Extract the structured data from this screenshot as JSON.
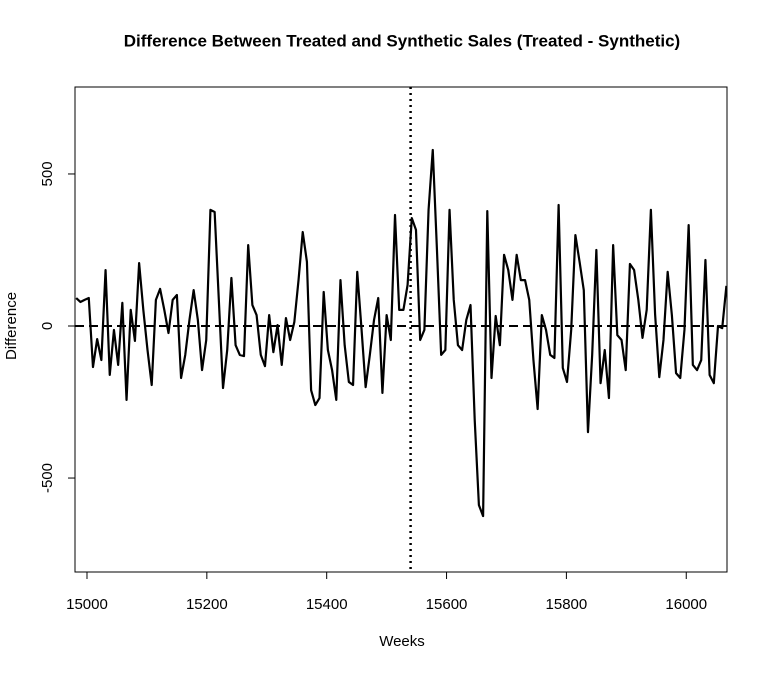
{
  "chart_data": {
    "type": "line",
    "title": "Difference Between Treated and Synthetic Sales (Treated - Synthetic)",
    "xlabel": "Weeks",
    "ylabel": "Difference",
    "color": "#000000",
    "x": [
      14982,
      14989,
      14996,
      15003,
      15010,
      15017,
      15024,
      15031,
      15038,
      15045,
      15052,
      15059,
      15066,
      15073,
      15080,
      15087,
      15094,
      15101,
      15108,
      15115,
      15122,
      15129,
      15136,
      15143,
      15150,
      15157,
      15164,
      15171,
      15178,
      15185,
      15192,
      15199,
      15206,
      15213,
      15220,
      15227,
      15234,
      15241,
      15248,
      15255,
      15262,
      15269,
      15276,
      15283,
      15290,
      15297,
      15304,
      15311,
      15318,
      15325,
      15332,
      15339,
      15346,
      15353,
      15360,
      15367,
      15374,
      15381,
      15388,
      15395,
      15402,
      15409,
      15416,
      15423,
      15430,
      15437,
      15444,
      15451,
      15458,
      15465,
      15472,
      15479,
      15486,
      15493,
      15500,
      15507,
      15514,
      15521,
      15528,
      15535,
      15542,
      15549,
      15556,
      15563,
      15570,
      15577,
      15584,
      15591,
      15598,
      15605,
      15612,
      15619,
      15626,
      15633,
      15640,
      15647,
      15654,
      15661,
      15668,
      15675,
      15682,
      15689,
      15696,
      15703,
      15710,
      15717,
      15724,
      15731,
      15738,
      15745,
      15752,
      15759,
      15766,
      15773,
      15780,
      15787,
      15794,
      15801,
      15808,
      15815,
      15822,
      15829,
      15836,
      15843,
      15850,
      15857,
      15864,
      15871,
      15878,
      15885,
      15892,
      15899,
      15906,
      15913,
      15920,
      15927,
      15934,
      15941,
      15948,
      15955,
      15962,
      15969,
      15976,
      15983,
      15990,
      15997,
      16004,
      16011,
      16018,
      16025,
      16032,
      16039,
      16046,
      16053,
      16060,
      16067
    ],
    "values": [
      92,
      79,
      86,
      92,
      -135,
      -43,
      -112,
      184,
      -161,
      -13,
      -128,
      76,
      -243,
      53,
      -49,
      207,
      53,
      -79,
      -194,
      86,
      122,
      53,
      -23,
      86,
      102,
      -171,
      -95,
      20,
      118,
      20,
      -145,
      -46,
      382,
      375,
      86,
      -204,
      -79,
      158,
      -63,
      -95,
      -99,
      266,
      69,
      36,
      -95,
      -132,
      36,
      -86,
      3,
      -128,
      26,
      -46,
      13,
      151,
      309,
      211,
      -211,
      -260,
      -237,
      112,
      -79,
      -145,
      -243,
      151,
      -63,
      -184,
      -194,
      178,
      -7,
      -201,
      -95,
      20,
      92,
      -220,
      36,
      -46,
      365,
      53,
      53,
      135,
      355,
      316,
      -46,
      -13,
      382,
      579,
      250,
      -95,
      -79,
      382,
      86,
      -63,
      -79,
      20,
      69,
      -309,
      -589,
      -625,
      378,
      -171,
      33,
      -63,
      234,
      184,
      86,
      234,
      151,
      151,
      86,
      -112,
      -273,
      36,
      -13,
      -95,
      -105,
      398,
      -138,
      -184,
      -13,
      299,
      211,
      118,
      -349,
      -95,
      250,
      -188,
      -79,
      -237,
      266,
      -30,
      -46,
      -145,
      204,
      184,
      86,
      -39,
      53,
      382,
      39,
      -168,
      -46,
      178,
      36,
      -155,
      -171,
      -13,
      332,
      -128,
      -145,
      -112,
      217,
      -161,
      -188,
      0,
      -7,
      132
    ],
    "xlim": [
      14980,
      16068
    ],
    "ylim": [
      -809,
      786
    ],
    "xticks": [
      15000,
      15200,
      15400,
      15600,
      15800,
      16000
    ],
    "yticks": [
      -500,
      0,
      500
    ],
    "hline": 0,
    "vline": 15540
  }
}
